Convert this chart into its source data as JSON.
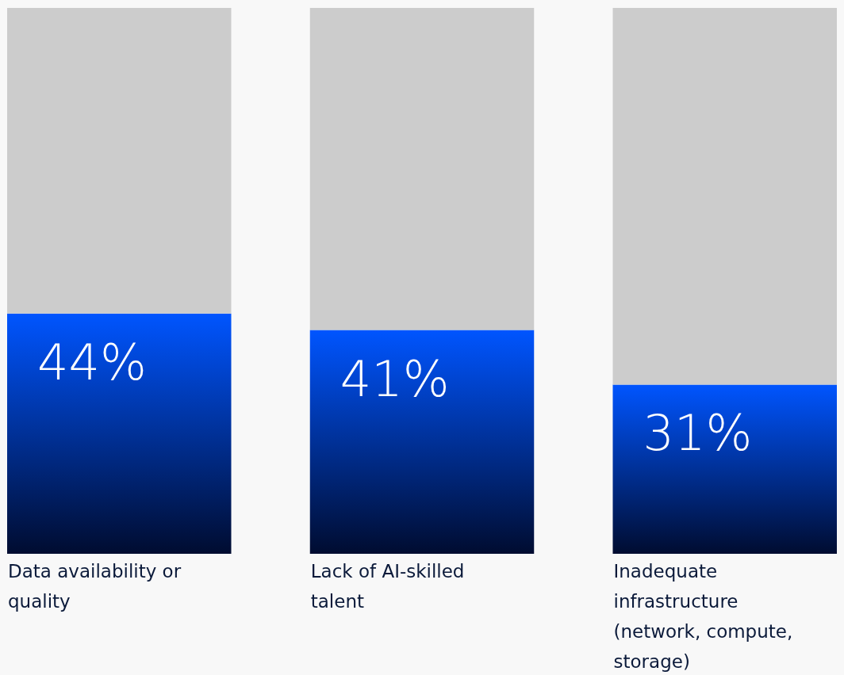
{
  "chart_data": {
    "type": "bar",
    "stacked": true,
    "categories": [
      "Data availability or quality",
      "Lack of AI-skilled talent",
      "Inadequate infrastructure (network, compute, storage)"
    ],
    "series": [
      {
        "color": "#0055ff",
        "values": [
          44,
          41,
          31
        ],
        "value_labels": [
          "44%",
          "41%",
          "31%"
        ]
      },
      {
        "color": "#cccccc",
        "values": [
          56,
          59,
          69
        ]
      }
    ],
    "ylim": [
      0,
      100
    ],
    "tick_labels": false
  }
}
